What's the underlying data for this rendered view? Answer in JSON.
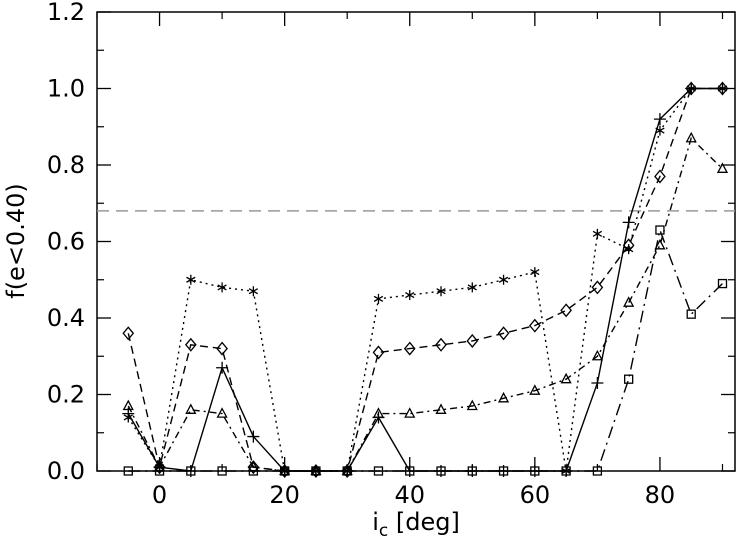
{
  "chart_data": {
    "type": "line",
    "title": "",
    "xlabel_main": "i",
    "xlabel_sub": "c",
    "xlabel_rest": " [deg]",
    "ylabel": "f(e<0.40)",
    "xlim": [
      -10,
      92
    ],
    "ylim": [
      0,
      1.2
    ],
    "xticks": [
      0,
      20,
      40,
      60,
      80
    ],
    "yticks": [
      0.0,
      0.2,
      0.4,
      0.6,
      0.8,
      1.0,
      1.2
    ],
    "ytick_labels": [
      "0.0",
      "0.2",
      "0.4",
      "0.6",
      "0.8",
      "1.0",
      "1.2"
    ],
    "reference_line": {
      "y": 0.68,
      "style": "dashed",
      "color": "#999999"
    },
    "series": [
      {
        "marker": "plus",
        "line": "solid",
        "x": [
          -5,
          0,
          5,
          10,
          15,
          20,
          25,
          30,
          35,
          40,
          45,
          50,
          55,
          60,
          65,
          70,
          75,
          80,
          85,
          90
        ],
        "y": [
          0.15,
          0.01,
          0.0,
          0.27,
          0.09,
          0.0,
          0.0,
          0.0,
          0.14,
          0.0,
          0.0,
          0.0,
          0.0,
          0.0,
          0.0,
          0.23,
          0.65,
          0.92,
          1.0,
          1.0
        ]
      },
      {
        "marker": "diamond",
        "line": "dashed",
        "x": [
          -5,
          0,
          5,
          10,
          15,
          20,
          25,
          30,
          35,
          40,
          45,
          50,
          55,
          60,
          65,
          70,
          75,
          80,
          85,
          90
        ],
        "y": [
          0.36,
          0.01,
          0.33,
          0.32,
          0.01,
          0.0,
          0.0,
          0.0,
          0.31,
          0.32,
          0.33,
          0.34,
          0.36,
          0.38,
          0.42,
          0.48,
          0.59,
          0.77,
          1.0,
          1.0
        ]
      },
      {
        "marker": "triangle",
        "line": "dashdot",
        "x": [
          -5,
          0,
          5,
          10,
          15,
          20,
          25,
          30,
          35,
          40,
          45,
          50,
          55,
          60,
          65,
          70,
          75,
          80,
          85,
          90
        ],
        "y": [
          0.17,
          0.01,
          0.16,
          0.15,
          0.01,
          0.0,
          0.0,
          0.0,
          0.15,
          0.15,
          0.16,
          0.17,
          0.19,
          0.21,
          0.24,
          0.3,
          0.44,
          0.59,
          0.87,
          0.79
        ]
      },
      {
        "marker": "asterisk",
        "line": "dotted",
        "x": [
          -5,
          0,
          5,
          10,
          15,
          20,
          25,
          30,
          35,
          40,
          45,
          50,
          55,
          60,
          65,
          70,
          75,
          80,
          85,
          90
        ],
        "y": [
          0.14,
          0.01,
          0.5,
          0.48,
          0.47,
          0.0,
          0.0,
          0.0,
          0.45,
          0.46,
          0.47,
          0.48,
          0.5,
          0.52,
          0.0,
          0.62,
          0.58,
          0.89,
          1.0,
          1.0
        ]
      },
      {
        "marker": "square",
        "line": "longdashdot",
        "x": [
          -5,
          0,
          5,
          10,
          15,
          20,
          25,
          30,
          35,
          40,
          45,
          50,
          55,
          60,
          65,
          70,
          75,
          80,
          85,
          90
        ],
        "y": [
          0.0,
          0.0,
          0.0,
          0.0,
          0.0,
          0.0,
          0.0,
          0.0,
          0.0,
          0.0,
          0.0,
          0.0,
          0.0,
          0.0,
          0.0,
          0.0,
          0.24,
          0.63,
          0.41,
          0.49
        ]
      }
    ]
  }
}
